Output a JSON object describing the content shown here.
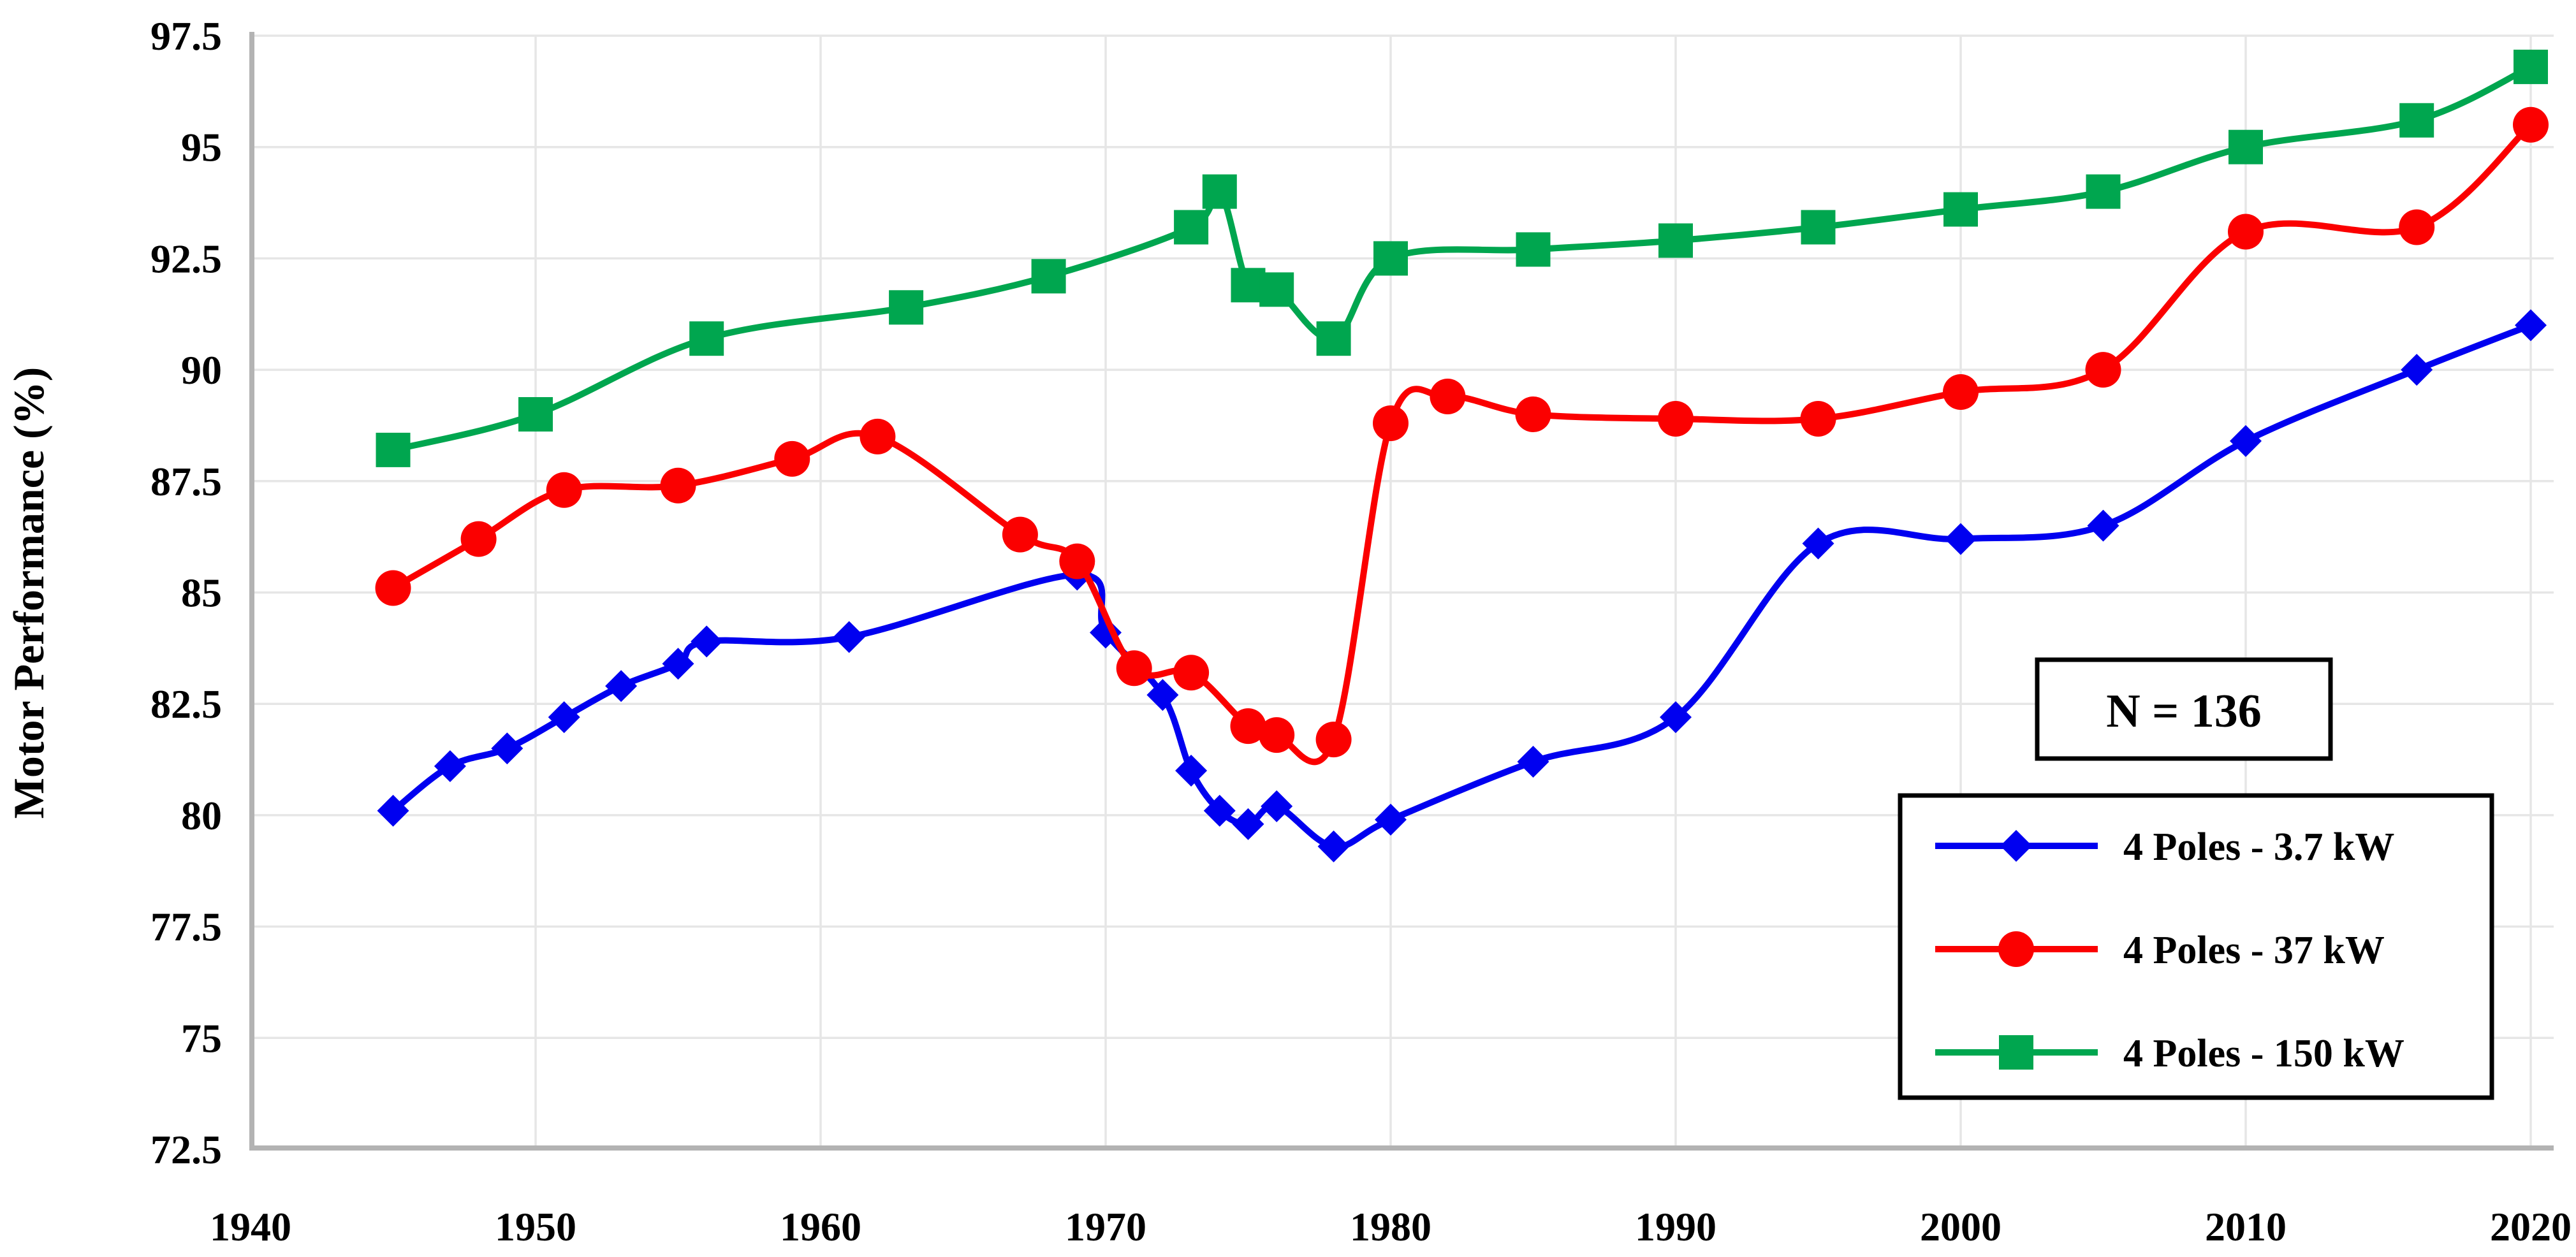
{
  "figure": {
    "type_label": "line-chart-figure"
  },
  "chart_data": {
    "type": "line",
    "title": "",
    "xlabel": "",
    "ylabel": "Motor Performance (%)",
    "xlim": [
      1940,
      2020
    ],
    "ylim": [
      72.5,
      97.5
    ],
    "xticks": [
      "1940",
      "1950",
      "1960",
      "1970",
      "1980",
      "1990",
      "2000",
      "2010",
      "2020"
    ],
    "yticks": [
      "72.5",
      "75",
      "77.5",
      "80",
      "82.5",
      "85",
      "87.5",
      "90",
      "92.5",
      "95",
      "97.5"
    ],
    "grid": true,
    "line_smoothing": true,
    "legend_position": "lower-right",
    "annotation": {
      "text": "N = 136"
    },
    "colors": {
      "axis": "#b3b3b3",
      "gridline": "#e6e6e6",
      "legend_border": "#000000",
      "annotation_border": "#000000",
      "text": "#000000"
    },
    "series": [
      {
        "name": "4 Poles - 3.7 kW",
        "color": "#0000f0",
        "marker": "diamond",
        "x": [
          1945,
          1947,
          1949,
          1951,
          1953,
          1955,
          1956,
          1961,
          1969,
          1970,
          1972,
          1973,
          1974,
          1975,
          1976,
          1978,
          1980,
          1985,
          1990,
          1995,
          2000,
          2005,
          2010,
          2016,
          2020
        ],
        "y": [
          80.1,
          81.1,
          81.5,
          82.2,
          82.9,
          83.4,
          83.9,
          84.0,
          85.4,
          84.1,
          82.7,
          81.0,
          80.1,
          79.8,
          80.2,
          79.3,
          79.9,
          81.2,
          82.2,
          86.1,
          86.2,
          86.5,
          88.4,
          90.0,
          91.0
        ]
      },
      {
        "name": "4 Poles - 37 kW",
        "color": "#fb0000",
        "marker": "circle",
        "x": [
          1945,
          1948,
          1951,
          1955,
          1959,
          1962,
          1967,
          1969,
          1971,
          1973,
          1975,
          1976,
          1978,
          1980,
          1982,
          1985,
          1990,
          1995,
          2000,
          2005,
          2010,
          2016,
          2020
        ],
        "y": [
          85.1,
          86.2,
          87.3,
          87.4,
          88.0,
          88.5,
          86.3,
          85.7,
          83.3,
          83.2,
          82.0,
          81.8,
          81.7,
          88.8,
          89.4,
          89.0,
          88.9,
          88.9,
          89.5,
          90.0,
          93.1,
          93.2,
          95.5
        ]
      },
      {
        "name": "4 Poles - 150 kW",
        "color": "#00a64f",
        "marker": "square",
        "x": [
          1945,
          1950,
          1956,
          1963,
          1968,
          1973,
          1974,
          1975,
          1976,
          1978,
          1980,
          1985,
          1990,
          1995,
          2000,
          2005,
          2010,
          2016,
          2020
        ],
        "y": [
          88.2,
          89.0,
          90.7,
          91.4,
          92.1,
          93.2,
          94.0,
          91.9,
          91.8,
          90.7,
          92.5,
          92.7,
          92.9,
          93.2,
          93.6,
          94.0,
          95.0,
          95.6,
          96.8
        ]
      }
    ]
  }
}
